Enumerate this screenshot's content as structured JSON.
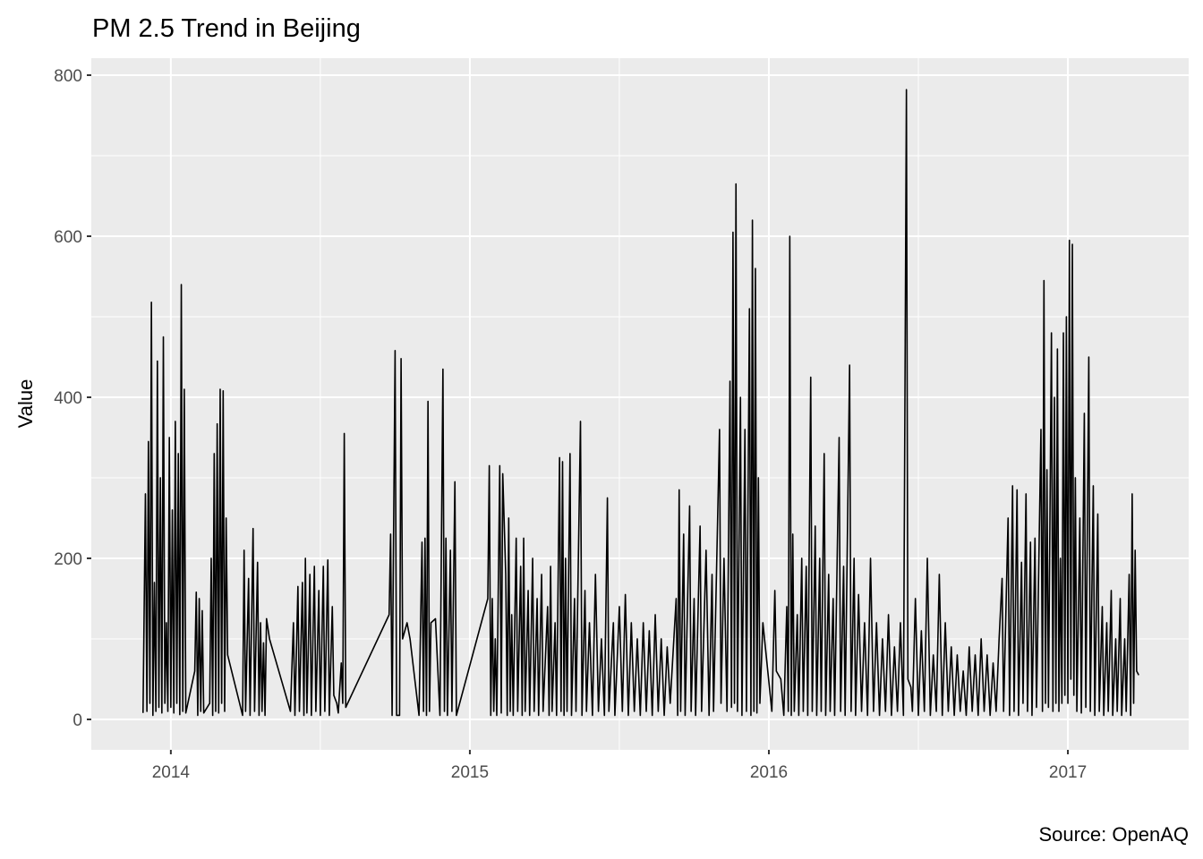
{
  "chart_data": {
    "type": "line",
    "title": "PM 2.5 Trend in Beijing",
    "y_label": "Value",
    "caption": "Source: OpenAQ",
    "xlim": [
      2013.734,
      2017.404
    ],
    "xticks": [
      2014,
      2015,
      2016,
      2017
    ],
    "x_minor_ticks": [
      2014.5,
      2015.5,
      2016.5
    ],
    "ylim": [
      -37.8,
      821.1
    ],
    "yticks": [
      0,
      200,
      400,
      600,
      800
    ],
    "y_minor_ticks": [
      100,
      300,
      500,
      700
    ],
    "grid": true,
    "series": [
      {
        "color": "#000000",
        "x": [
          2013.907,
          2013.915,
          2013.92,
          2013.925,
          2013.93,
          2013.935,
          2013.94,
          2013.945,
          2013.95,
          2013.955,
          2013.96,
          2013.965,
          2013.97,
          2013.975,
          2013.98,
          2013.985,
          2013.99,
          2013.995,
          2014.0,
          2014.005,
          2014.01,
          2014.015,
          2014.02,
          2014.025,
          2014.03,
          2014.035,
          2014.04,
          2014.045,
          2014.05,
          2014.08,
          2014.085,
          2014.09,
          2014.095,
          2014.1,
          2014.105,
          2014.11,
          2014.13,
          2014.135,
          2014.14,
          2014.145,
          2014.15,
          2014.155,
          2014.16,
          2014.165,
          2014.17,
          2014.175,
          2014.18,
          2014.185,
          2014.19,
          2014.24,
          2014.245,
          2014.25,
          2014.26,
          2014.265,
          2014.275,
          2014.28,
          2014.29,
          2014.295,
          2014.3,
          2014.305,
          2014.31,
          2014.315,
          2014.32,
          2014.33,
          2014.4,
          2014.41,
          2014.415,
          2014.425,
          2014.43,
          2014.44,
          2014.445,
          2014.45,
          2014.455,
          2014.465,
          2014.47,
          2014.48,
          2014.485,
          2014.495,
          2014.5,
          2014.51,
          2014.515,
          2014.525,
          2014.53,
          2014.54,
          2014.545,
          2014.555,
          2014.56,
          2014.57,
          2014.575,
          2014.58,
          2014.585,
          2014.73,
          2014.735,
          2014.74,
          2014.75,
          2014.755,
          2014.765,
          2014.77,
          2014.775,
          2014.79,
          2014.8,
          2014.83,
          2014.84,
          2014.845,
          2014.85,
          2014.855,
          2014.86,
          2014.865,
          2014.87,
          2014.885,
          2014.9,
          2014.91,
          2014.915,
          2014.92,
          2014.925,
          2014.935,
          2014.94,
          2014.95,
          2014.955,
          2015.06,
          2015.065,
          2015.07,
          2015.075,
          2015.08,
          2015.085,
          2015.09,
          2015.1,
          2015.105,
          2015.11,
          2015.12,
          2015.125,
          2015.13,
          2015.135,
          2015.14,
          2015.145,
          2015.155,
          2015.16,
          2015.17,
          2015.175,
          2015.18,
          2015.185,
          2015.195,
          2015.2,
          2015.21,
          2015.215,
          2015.225,
          2015.23,
          2015.24,
          2015.245,
          2015.26,
          2015.265,
          2015.27,
          2015.275,
          2015.285,
          2015.29,
          2015.3,
          2015.305,
          2015.31,
          2015.315,
          2015.32,
          2015.325,
          2015.335,
          2015.34,
          2015.35,
          2015.355,
          2015.37,
          2015.375,
          2015.385,
          2015.39,
          2015.4,
          2015.41,
          2015.42,
          2015.43,
          2015.44,
          2015.45,
          2015.46,
          2015.465,
          2015.48,
          2015.485,
          2015.5,
          2015.51,
          2015.52,
          2015.53,
          2015.54,
          2015.55,
          2015.56,
          2015.57,
          2015.58,
          2015.59,
          2015.6,
          2015.61,
          2015.62,
          2015.63,
          2015.64,
          2015.65,
          2015.66,
          2015.67,
          2015.69,
          2015.695,
          2015.7,
          2015.705,
          2015.715,
          2015.72,
          2015.735,
          2015.74,
          2015.75,
          2015.755,
          2015.77,
          2015.775,
          2015.79,
          2015.8,
          2015.81,
          2015.815,
          2015.835,
          2015.84,
          2015.85,
          2015.86,
          2015.87,
          2015.875,
          2015.88,
          2015.885,
          2015.89,
          2015.895,
          2015.905,
          2015.91,
          2015.92,
          2015.925,
          2015.935,
          2015.94,
          2015.945,
          2015.95,
          2015.955,
          2015.96,
          2015.965,
          2015.97,
          2015.98,
          2016.01,
          2016.02,
          2016.025,
          2016.04,
          2016.05,
          2016.06,
          2016.065,
          2016.07,
          2016.075,
          2016.08,
          2016.085,
          2016.095,
          2016.1,
          2016.11,
          2016.115,
          2016.125,
          2016.13,
          2016.14,
          2016.145,
          2016.155,
          2016.16,
          2016.17,
          2016.175,
          2016.185,
          2016.19,
          2016.2,
          2016.205,
          2016.215,
          2016.22,
          2016.235,
          2016.24,
          2016.25,
          2016.255,
          2016.27,
          2016.275,
          2016.285,
          2016.29,
          2016.3,
          2016.31,
          2016.32,
          2016.33,
          2016.34,
          2016.35,
          2016.36,
          2016.37,
          2016.38,
          2016.39,
          2016.4,
          2016.41,
          2016.42,
          2016.43,
          2016.44,
          2016.45,
          2016.46,
          2016.465,
          2016.475,
          2016.48,
          2016.49,
          2016.5,
          2016.51,
          2016.52,
          2016.53,
          2016.54,
          2016.55,
          2016.56,
          2016.57,
          2016.58,
          2016.59,
          2016.6,
          2016.61,
          2016.62,
          2016.63,
          2016.64,
          2016.65,
          2016.66,
          2016.67,
          2016.68,
          2016.69,
          2016.7,
          2016.71,
          2016.72,
          2016.73,
          2016.74,
          2016.75,
          2016.76,
          2016.77,
          2016.78,
          2016.785,
          2016.8,
          2016.805,
          2016.815,
          2016.82,
          2016.83,
          2016.835,
          2016.845,
          2016.85,
          2016.86,
          2016.865,
          2016.875,
          2016.88,
          2016.89,
          2016.895,
          2016.91,
          2016.915,
          2016.92,
          2016.925,
          2016.93,
          2016.935,
          2016.945,
          2016.95,
          2016.955,
          2016.96,
          2016.965,
          2016.97,
          2016.975,
          2016.98,
          2016.985,
          2016.99,
          2016.995,
          2017.0,
          2017.005,
          2017.01,
          2017.015,
          2017.02,
          2017.025,
          2017.03,
          2017.04,
          2017.045,
          2017.055,
          2017.06,
          2017.07,
          2017.075,
          2017.085,
          2017.09,
          2017.1,
          2017.105,
          2017.115,
          2017.12,
          2017.13,
          2017.135,
          2017.145,
          2017.15,
          2017.16,
          2017.165,
          2017.175,
          2017.18,
          2017.19,
          2017.195,
          2017.205,
          2017.21,
          2017.215,
          2017.22,
          2017.225,
          2017.23,
          2017.237
        ],
        "values": [
          8,
          280,
          10,
          345,
          20,
          518,
          5,
          170,
          10,
          445,
          15,
          300,
          8,
          475,
          20,
          120,
          10,
          350,
          15,
          260,
          8,
          370,
          20,
          330,
          6,
          540,
          10,
          410,
          8,
          60,
          158,
          5,
          150,
          10,
          135,
          8,
          20,
          200,
          5,
          330,
          10,
          367,
          8,
          410,
          20,
          408,
          10,
          250,
          80,
          5,
          210,
          10,
          175,
          5,
          237,
          10,
          195,
          5,
          120,
          10,
          95,
          5,
          125,
          100,
          10,
          120,
          5,
          165,
          10,
          170,
          5,
          200,
          8,
          180,
          5,
          190,
          10,
          160,
          5,
          190,
          10,
          198,
          5,
          140,
          30,
          20,
          8,
          70,
          20,
          355,
          15,
          130,
          230,
          5,
          458,
          5,
          5,
          448,
          100,
          120,
          100,
          5,
          220,
          10,
          225,
          5,
          395,
          10,
          120,
          125,
          5,
          435,
          10,
          225,
          5,
          210,
          10,
          295,
          5,
          150,
          315,
          5,
          150,
          10,
          100,
          5,
          315,
          8,
          305,
          180,
          5,
          250,
          10,
          130,
          5,
          225,
          10,
          190,
          5,
          225,
          10,
          160,
          5,
          200,
          10,
          150,
          5,
          180,
          10,
          140,
          5,
          190,
          10,
          120,
          5,
          325,
          10,
          320,
          5,
          200,
          10,
          330,
          5,
          150,
          10,
          370,
          5,
          160,
          10,
          120,
          5,
          180,
          10,
          100,
          5,
          275,
          10,
          120,
          5,
          140,
          10,
          155,
          5,
          120,
          10,
          100,
          5,
          120,
          10,
          110,
          5,
          130,
          10,
          100,
          5,
          90,
          20,
          150,
          5,
          285,
          10,
          230,
          5,
          265,
          10,
          150,
          5,
          240,
          10,
          210,
          5,
          180,
          10,
          360,
          20,
          200,
          10,
          420,
          15,
          605,
          20,
          665,
          10,
          400,
          5,
          360,
          10,
          510,
          5,
          620,
          10,
          560,
          8,
          300,
          20,
          120,
          10,
          160,
          60,
          50,
          5,
          140,
          10,
          600,
          5,
          230,
          10,
          130,
          5,
          200,
          10,
          190,
          5,
          425,
          10,
          240,
          5,
          200,
          10,
          330,
          5,
          180,
          10,
          150,
          5,
          350,
          10,
          190,
          5,
          440,
          10,
          200,
          5,
          155,
          10,
          120,
          5,
          200,
          10,
          120,
          5,
          100,
          10,
          130,
          5,
          90,
          10,
          120,
          5,
          782,
          50,
          40,
          10,
          150,
          5,
          110,
          10,
          200,
          5,
          80,
          10,
          180,
          5,
          120,
          10,
          90,
          5,
          80,
          10,
          60,
          5,
          90,
          10,
          80,
          5,
          100,
          10,
          80,
          5,
          70,
          10,
          100,
          175,
          10,
          250,
          5,
          290,
          10,
          285,
          5,
          195,
          20,
          280,
          10,
          220,
          5,
          225,
          15,
          360,
          10,
          545,
          20,
          310,
          15,
          480,
          10,
          400,
          20,
          460,
          10,
          200,
          20,
          480,
          30,
          500,
          20,
          595,
          50,
          590,
          30,
          300,
          10,
          250,
          8,
          380,
          15,
          450,
          10,
          290,
          5,
          255,
          10,
          140,
          5,
          120,
          10,
          160,
          5,
          100,
          10,
          150,
          5,
          100,
          10,
          180,
          5,
          280,
          20,
          210,
          60,
          55
        ]
      }
    ]
  }
}
